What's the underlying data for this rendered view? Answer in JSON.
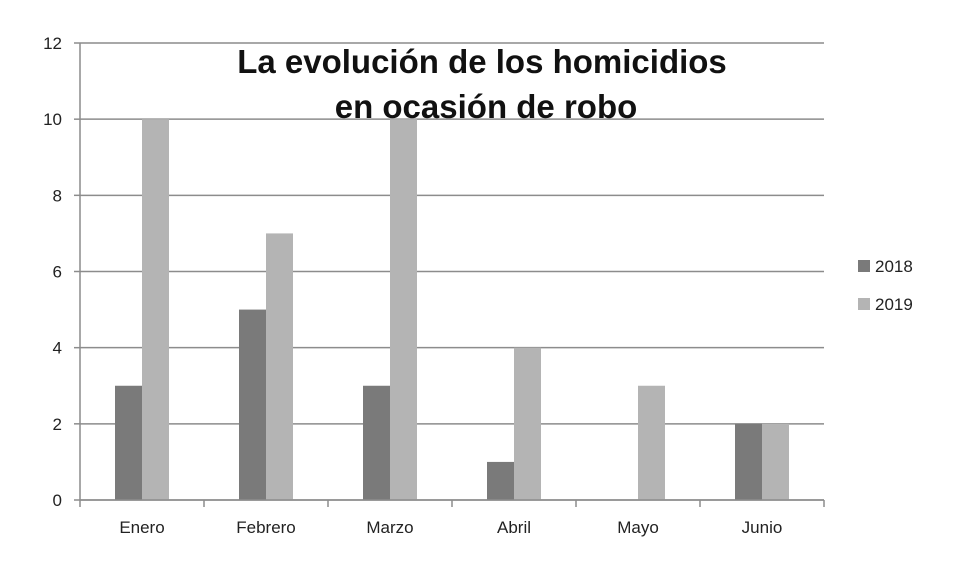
{
  "chart_data": {
    "type": "bar",
    "title": [
      "La evolución de los homicidios",
      "en ocasión de robo"
    ],
    "categories": [
      "Enero",
      "Febrero",
      "Marzo",
      "Abril",
      "Mayo",
      "Junio"
    ],
    "series": [
      {
        "name": "2018",
        "values": [
          3,
          5,
          3,
          1,
          0,
          2
        ],
        "color": "#7a7a7a"
      },
      {
        "name": "2019",
        "values": [
          10,
          7,
          10,
          4,
          3,
          2
        ],
        "color": "#b4b4b4"
      }
    ],
    "ylim": [
      0,
      12
    ],
    "yticks": [
      "0",
      "2",
      "4",
      "6",
      "8",
      "10",
      "12"
    ],
    "grid": true,
    "legend_position": "right",
    "xlabel": "",
    "ylabel": ""
  }
}
